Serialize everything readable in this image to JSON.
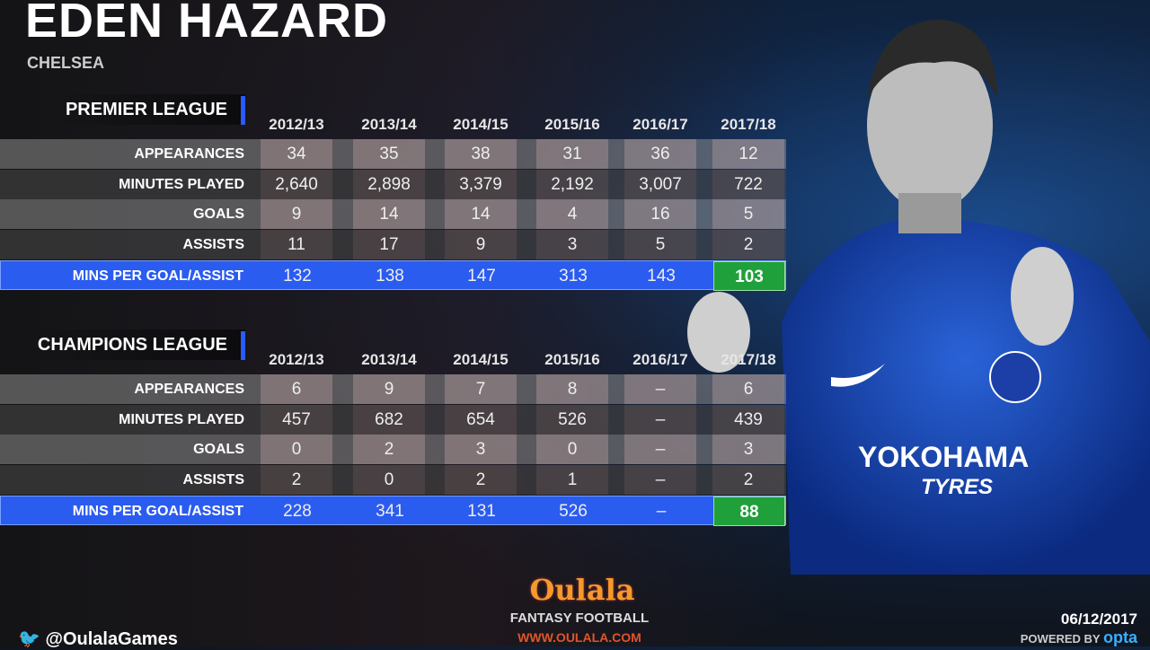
{
  "header": {
    "player": "EDEN HAZARD",
    "club": "CHELSEA"
  },
  "seasons": [
    "2012/13",
    "2013/14",
    "2014/15",
    "2015/16",
    "2016/17",
    "2017/18"
  ],
  "premier_league": {
    "title": "PREMIER LEAGUE",
    "rows": [
      {
        "label": "APPEARANCES",
        "values": [
          "34",
          "35",
          "38",
          "31",
          "36",
          "12"
        ]
      },
      {
        "label": "MINUTES PLAYED",
        "values": [
          "2,640",
          "2,898",
          "3,379",
          "2,192",
          "3,007",
          "722"
        ]
      },
      {
        "label": "GOALS",
        "values": [
          "9",
          "14",
          "14",
          "4",
          "16",
          "5"
        ]
      },
      {
        "label": "ASSISTS",
        "values": [
          "11",
          "17",
          "9",
          "3",
          "5",
          "2"
        ]
      },
      {
        "label": "MINS PER GOAL/ASSIST",
        "values": [
          "132",
          "138",
          "147",
          "313",
          "143",
          "103"
        ]
      }
    ]
  },
  "champions_league": {
    "title": "CHAMPIONS LEAGUE",
    "rows": [
      {
        "label": "APPEARANCES",
        "values": [
          "6",
          "9",
          "7",
          "8",
          "–",
          "6"
        ]
      },
      {
        "label": "MINUTES PLAYED",
        "values": [
          "457",
          "682",
          "654",
          "526",
          "–",
          "439"
        ]
      },
      {
        "label": "GOALS",
        "values": [
          "0",
          "2",
          "3",
          "0",
          "–",
          "3"
        ]
      },
      {
        "label": "ASSISTS",
        "values": [
          "2",
          "0",
          "2",
          "1",
          "–",
          "2"
        ]
      },
      {
        "label": "MINS PER GOAL/ASSIST",
        "values": [
          "228",
          "341",
          "131",
          "526",
          "–",
          "88"
        ]
      }
    ]
  },
  "sponsor": {
    "line1": "YOKOHAMA",
    "line2": "TYRES"
  },
  "footer": {
    "twitter": "@OulalaGames",
    "logo": "Oulala",
    "tagline": "FANTASY FOOTBALL",
    "url": "WWW.OULALA.COM",
    "date": "06/12/2017",
    "powered": "POWERED BY",
    "powered_brand": "opta"
  },
  "colors": {
    "highlight_row": "#2b5cf0",
    "best_cell": "#1fa03a",
    "accent_bar": "#2a5bff"
  }
}
